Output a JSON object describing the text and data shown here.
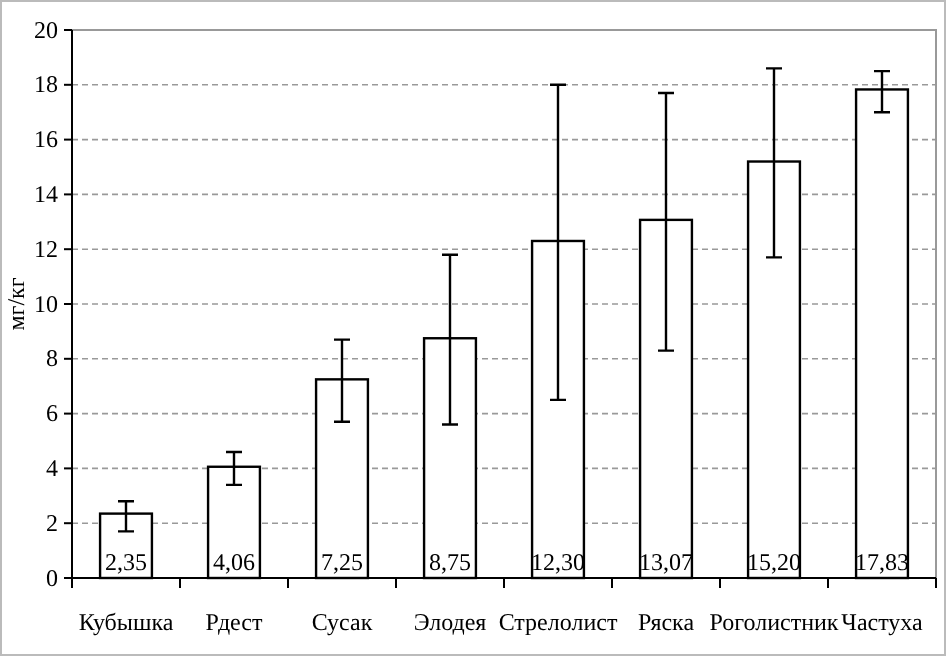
{
  "chart_data": {
    "type": "bar",
    "ylabel": "мг/кг",
    "categories": [
      "Кубышка",
      "Рдест",
      "Сусак",
      "Элодея",
      "Стрелолист",
      "Ряска",
      "Роголистник",
      "Частуха"
    ],
    "values": [
      2.35,
      4.06,
      7.25,
      8.75,
      12.3,
      13.07,
      15.2,
      17.83
    ],
    "value_labels": [
      "2,35",
      "4,06",
      "7,25",
      "8,75",
      "12,30",
      "13,07",
      "15,20",
      "17,83"
    ],
    "errors": [
      [
        1.7,
        2.8
      ],
      [
        3.4,
        4.6
      ],
      [
        5.7,
        8.7
      ],
      [
        5.6,
        11.8
      ],
      [
        6.5,
        18.0
      ],
      [
        8.3,
        17.7
      ],
      [
        11.7,
        18.6
      ],
      [
        17.0,
        18.5
      ]
    ],
    "color": "#ffffff",
    "ylim": [
      0,
      20
    ],
    "yticks": [
      0,
      2,
      4,
      6,
      8,
      10,
      12,
      14,
      16,
      18,
      20
    ],
    "grid": "y"
  }
}
